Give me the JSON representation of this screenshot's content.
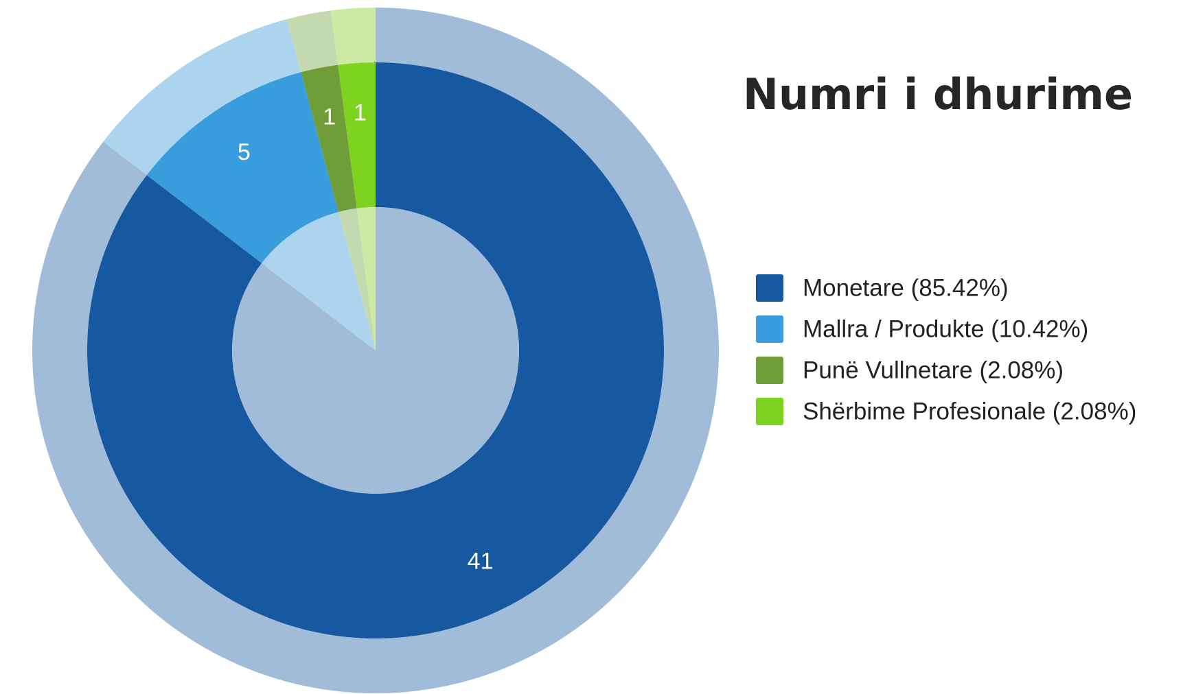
{
  "chart_data": {
    "type": "donut",
    "title": "Numri i dhurime",
    "labels": [
      "Monetare (85.42%)",
      "Mallra / Produkte (10.42%)",
      "Punë Vullnetare (2.08%)",
      "Shërbime Profesionale (2.08%)"
    ],
    "values": [
      41,
      5,
      1,
      1
    ],
    "colors": [
      "#1659a0",
      "#389cdd",
      "#6f9d37",
      "#7ed321"
    ],
    "faded_colors": [
      "#a0bcd8",
      "#acd4ee",
      "#c5d9b0",
      "#cdeaa5"
    ],
    "legend": "right"
  }
}
